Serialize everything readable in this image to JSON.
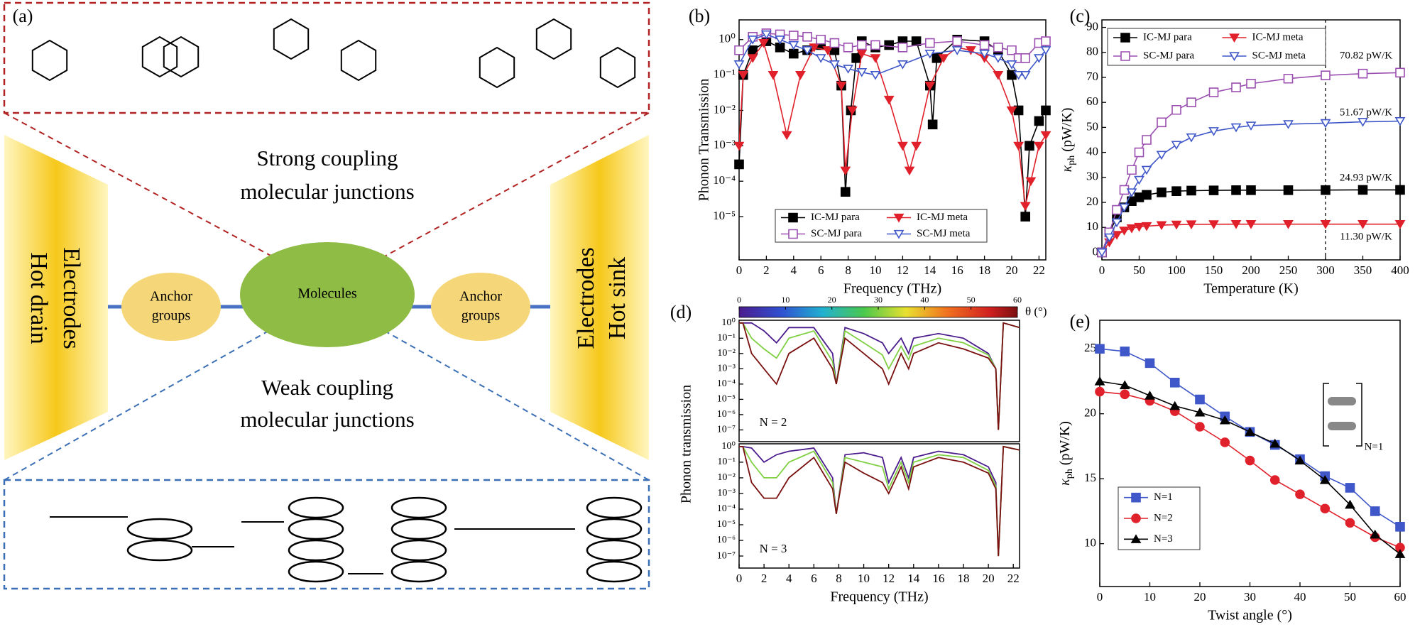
{
  "panel_a": {
    "label": "(a)",
    "top_text": [
      "Strong coupling",
      "molecular junctions"
    ],
    "bottom_text": [
      "Weak coupling",
      "molecular junctions"
    ],
    "left_electrode": [
      "Electrodes",
      "Hot drain"
    ],
    "right_electrode": [
      "Electrodes",
      "Hot sink"
    ],
    "anchor_left": [
      "Anchor",
      "groups"
    ],
    "molecules": "Molecules",
    "anchor_right": [
      "Anchor",
      "groups"
    ]
  },
  "chart_data": [
    {
      "type": "line",
      "panel": "(b)",
      "x_label": "Frequency (THz)",
      "y_label": "Phonon Transmission",
      "log_y": true,
      "xlim": [
        0,
        22.5
      ],
      "ylim": [
        6e-07,
        3.6
      ],
      "xticks": [
        0,
        2,
        4,
        6,
        8,
        10,
        12,
        14,
        16,
        18,
        20,
        22
      ],
      "yticks": [
        {
          "value": 1,
          "label": "10⁰"
        },
        {
          "value": 0.1,
          "label": "10⁻¹"
        },
        {
          "value": 0.01,
          "label": "10⁻²"
        },
        {
          "value": 0.001,
          "label": "10⁻³"
        },
        {
          "value": 0.0001,
          "label": "10⁻⁴"
        },
        {
          "value": 1e-05,
          "label": "10⁻⁵"
        }
      ],
      "legend": {
        "position": "lower center",
        "columns": 2
      },
      "series": [
        {
          "name": "IC-MJ para",
          "color": "#000000",
          "marker": "square",
          "filled": true,
          "x": [
            0,
            0.3,
            1,
            2,
            3,
            4,
            5,
            6,
            7,
            7.5,
            7.8,
            8.2,
            8.6,
            9,
            10,
            11,
            12,
            13,
            14,
            14.2,
            14.5,
            16,
            18,
            19,
            20,
            20.5,
            21,
            21.3,
            22,
            22.5
          ],
          "values": [
            0.0003,
            0.1,
            0.5,
            0.9,
            0.6,
            0.4,
            0.5,
            0.7,
            0.5,
            0.05,
            5e-05,
            0.01,
            0.3,
            0.9,
            0.6,
            0.7,
            0.9,
            0.9,
            0.05,
            0.004,
            0.3,
            1,
            0.9,
            0.5,
            0.1,
            0.01,
            1e-05,
            0.001,
            0.005,
            0.01
          ]
        },
        {
          "name": "IC-MJ meta",
          "color": "#e0202a",
          "marker": "triangle-down",
          "filled": true,
          "x": [
            0,
            0.3,
            1,
            1.8,
            2.5,
            3.5,
            4.5,
            5.5,
            6.5,
            7.5,
            7.8,
            8.3,
            9,
            10,
            11,
            12,
            12.5,
            13,
            14,
            15,
            16,
            17,
            18,
            19,
            20,
            20.5,
            21,
            21.4,
            22,
            22.5
          ],
          "values": [
            0.001,
            0.1,
            0.3,
            0.8,
            0.1,
            0.002,
            0.1,
            0.6,
            0.5,
            0.05,
            0.0002,
            0.01,
            0.4,
            0.3,
            0.02,
            0.001,
            0.0002,
            0.001,
            0.05,
            0.3,
            0.6,
            0.5,
            0.3,
            0.1,
            0.01,
            0.001,
            2e-05,
            0.0001,
            0.001,
            0.002
          ]
        },
        {
          "name": "SC-MJ para",
          "color": "#9b4fb0",
          "marker": "square",
          "filled": false,
          "x": [
            0,
            1,
            2,
            3,
            4,
            5,
            6,
            7,
            8,
            9,
            10,
            12,
            14,
            16,
            18,
            19,
            20,
            20.5,
            21,
            22,
            22.5
          ],
          "values": [
            0.5,
            1.2,
            1.5,
            1.4,
            1.3,
            1.2,
            1,
            0.8,
            0.6,
            0.7,
            0.7,
            0.6,
            0.8,
            0.9,
            0.7,
            0.6,
            0.5,
            0.3,
            0.3,
            0.8,
            0.9
          ]
        },
        {
          "name": "SC-MJ meta",
          "color": "#3f57c8",
          "marker": "triangle-down",
          "filled": false,
          "x": [
            0,
            1,
            2,
            3,
            4,
            5,
            6,
            7,
            8,
            9,
            10,
            12,
            14,
            16,
            18,
            19,
            20,
            20.5,
            21,
            22,
            22.5
          ],
          "values": [
            0.2,
            1,
            1.4,
            1,
            0.7,
            0.5,
            0.3,
            0.2,
            0.15,
            0.12,
            0.1,
            0.2,
            0.4,
            0.5,
            0.4,
            0.3,
            0.2,
            0.1,
            0.1,
            0.3,
            0.5
          ]
        }
      ]
    },
    {
      "type": "line",
      "panel": "(c)",
      "x_label": "Temperature (K)",
      "y_label": {
        "symbol": "κ",
        "subscript": "ph",
        "unit": " (pW/K)"
      },
      "xlim": [
        0,
        400
      ],
      "ylim": [
        -3,
        93
      ],
      "xticks": [
        0,
        50,
        100,
        150,
        200,
        250,
        300,
        350,
        400
      ],
      "yticks": [
        0,
        10,
        20,
        30,
        40,
        50,
        60,
        70,
        80,
        90
      ],
      "vline_x": 300,
      "annotations": [
        "70.82 pW/K",
        "51.67 pW/K",
        "24.93 pW/K",
        "11.30 pW/K"
      ],
      "legend": {
        "position": "upper left",
        "columns": 2
      },
      "x": [
        0,
        10,
        20,
        30,
        40,
        50,
        60,
        80,
        100,
        120,
        150,
        180,
        200,
        250,
        300,
        350,
        400
      ],
      "series": [
        {
          "name": "IC-MJ para",
          "color": "#000000",
          "marker": "square",
          "filled": true,
          "values": [
            0,
            8,
            14,
            18,
            20.5,
            22,
            23,
            24,
            24.5,
            24.7,
            24.8,
            24.9,
            24.9,
            24.9,
            24.93,
            25,
            25
          ]
        },
        {
          "name": "IC-MJ meta",
          "color": "#e0202a",
          "marker": "triangle-down",
          "filled": true,
          "values": [
            0,
            4,
            7,
            8.7,
            9.6,
            10.2,
            10.5,
            10.9,
            11.1,
            11.2,
            11.25,
            11.3,
            11.3,
            11.3,
            11.3,
            11.3,
            11.3
          ]
        },
        {
          "name": "SC-MJ para",
          "color": "#9b4fb0",
          "marker": "square",
          "filled": false,
          "values": [
            0,
            8,
            17,
            25,
            33,
            40,
            45,
            52,
            57,
            60,
            64,
            66,
            67.5,
            69.5,
            70.8,
            71.5,
            71.9
          ]
        },
        {
          "name": "SC-MJ meta",
          "color": "#3f57c8",
          "marker": "triangle-down",
          "filled": false,
          "values": [
            0,
            6,
            12,
            18,
            24,
            29,
            33,
            39,
            43,
            46,
            48.5,
            50,
            50.7,
            51.3,
            51.7,
            52.2,
            52.5
          ]
        }
      ]
    },
    {
      "type": "line",
      "panel": "(d)",
      "y_label": "Phonon transmission",
      "log_y": true,
      "xlim": [
        0,
        22.5
      ],
      "ylim": [
        1.7e-08,
        1.5
      ],
      "corner_label": "N = 2",
      "yticks": [
        {
          "value": 1,
          "label": "10⁰"
        },
        {
          "value": 0.1,
          "label": "10⁻¹"
        },
        {
          "value": 0.01,
          "label": "10⁻²"
        },
        {
          "value": 0.001,
          "label": "10⁻³"
        },
        {
          "value": 0.0001,
          "label": "10⁻⁴"
        },
        {
          "value": 1e-05,
          "label": "10⁻⁵"
        },
        {
          "value": 1e-06,
          "label": "10⁻⁶"
        },
        {
          "value": 1e-07,
          "label": "10⁻⁷"
        }
      ],
      "colorbar": {
        "ticks": [
          0,
          10,
          20,
          30,
          40,
          50,
          60
        ],
        "label": "θ (°)"
      },
      "x": [
        0,
        0.3,
        1,
        2,
        3,
        4,
        6,
        7.5,
        7.8,
        8.5,
        10,
        11.5,
        12,
        13,
        13.6,
        14,
        16,
        18,
        20,
        20.6,
        20.8,
        21.2,
        22.5
      ],
      "series": [
        {
          "theta": 0,
          "values": [
            1,
            1,
            1,
            0.3,
            0.05,
            0.5,
            0.5,
            0.01,
            0.0001,
            0.5,
            0.2,
            0.05,
            0.01,
            0.1,
            0.01,
            0.1,
            0.2,
            0.1,
            0.01,
            0.001,
            1e-07,
            1,
            0.5
          ]
        },
        {
          "theta": 30,
          "values": [
            1,
            1,
            0.1,
            0.02,
            0.005,
            0.1,
            0.3,
            0.003,
            0.0001,
            0.3,
            0.05,
            0.008,
            0.001,
            0.03,
            0.004,
            0.03,
            0.1,
            0.05,
            0.008,
            0.001,
            1e-07,
            1,
            0.5
          ]
        },
        {
          "theta": 60,
          "values": [
            1,
            1,
            0.01,
            0.001,
            0.0001,
            0.01,
            0.1,
            0.001,
            0.0001,
            0.1,
            0.01,
            0.001,
            0.0001,
            0.01,
            0.001,
            0.01,
            0.05,
            0.02,
            0.005,
            0.001,
            1e-07,
            1,
            0.5
          ]
        }
      ]
    },
    {
      "type": "line",
      "x_label": "Frequency (THz)",
      "log_y": true,
      "xlim": [
        0,
        22.5
      ],
      "ylim": [
        1.7e-08,
        1.5
      ],
      "corner_label": "N = 3",
      "xticks": [
        0,
        2,
        4,
        6,
        8,
        10,
        12,
        14,
        16,
        18,
        20,
        22
      ],
      "yticks": [
        {
          "value": 1,
          "label": "10⁰"
        },
        {
          "value": 0.1,
          "label": "10⁻¹"
        },
        {
          "value": 0.01,
          "label": "10⁻²"
        },
        {
          "value": 0.001,
          "label": "10⁻³"
        },
        {
          "value": 0.0001,
          "label": "10⁻⁴"
        },
        {
          "value": 1e-05,
          "label": "10⁻⁵"
        },
        {
          "value": 1e-06,
          "label": "10⁻⁶"
        },
        {
          "value": 1e-07,
          "label": "10⁻⁷"
        }
      ],
      "x": [
        0,
        0.3,
        1,
        2,
        3,
        4,
        6,
        7.5,
        7.8,
        8.5,
        10,
        11.5,
        12,
        13,
        13.6,
        14,
        16,
        18,
        20,
        20.6,
        20.8,
        21.2,
        22.5
      ],
      "series": [
        {
          "theta": 0,
          "values": [
            1,
            1,
            0.8,
            0.1,
            0.3,
            0.5,
            0.8,
            0.01,
            5e-05,
            0.3,
            0.4,
            0.2,
            0.005,
            0.2,
            0.01,
            0.2,
            0.5,
            0.3,
            0.05,
            0.005,
            1e-07,
            1,
            0.6
          ]
        },
        {
          "theta": 30,
          "values": [
            1,
            1,
            0.1,
            0.01,
            0.01,
            0.1,
            0.5,
            0.005,
            5e-05,
            0.2,
            0.1,
            0.05,
            0.002,
            0.1,
            0.005,
            0.1,
            0.3,
            0.2,
            0.03,
            0.003,
            1e-07,
            1,
            0.6
          ]
        },
        {
          "theta": 60,
          "values": [
            1,
            1,
            0.005,
            0.0005,
            0.0005,
            0.01,
            0.2,
            0.002,
            5e-05,
            0.1,
            0.02,
            0.005,
            0.001,
            0.05,
            0.002,
            0.05,
            0.2,
            0.1,
            0.02,
            0.002,
            1e-07,
            1,
            0.6
          ]
        }
      ]
    },
    {
      "type": "line",
      "panel": "(e)",
      "x_label": "Twist angle (°)",
      "y_label": {
        "symbol": "κ",
        "subscript": "ph",
        "unit": " (pW/K)"
      },
      "xlim": [
        0,
        60
      ],
      "ylim": [
        6.7,
        27.2
      ],
      "xticks": [
        0,
        10,
        20,
        30,
        40,
        50,
        60
      ],
      "yticks": [
        10,
        15,
        20,
        25
      ],
      "inset_label": "N=1",
      "legend": {
        "position": "lower left",
        "columns": 1
      },
      "x": [
        0,
        5,
        10,
        15,
        20,
        25,
        30,
        35,
        40,
        45,
        50,
        55,
        60
      ],
      "series": [
        {
          "name": "N=1",
          "color": "#3f57c8",
          "marker": "square",
          "filled": true,
          "values": [
            25,
            24.8,
            23.9,
            22.4,
            21.1,
            19.8,
            18.6,
            17.6,
            16.5,
            15.2,
            14.3,
            12.5,
            11.3
          ]
        },
        {
          "name": "N=2",
          "color": "#e0202a",
          "marker": "circle",
          "filled": true,
          "values": [
            21.7,
            21.5,
            21,
            20.2,
            19,
            17.8,
            16.4,
            14.9,
            13.8,
            12.7,
            11.6,
            10.5,
            9.7
          ]
        },
        {
          "name": "N=3",
          "color": "#000000",
          "marker": "triangle-up",
          "filled": true,
          "values": [
            22.5,
            22.2,
            21.4,
            20.6,
            20.1,
            19.5,
            18.6,
            17.7,
            16.4,
            14.9,
            13,
            10.7,
            9.2
          ]
        }
      ]
    }
  ]
}
